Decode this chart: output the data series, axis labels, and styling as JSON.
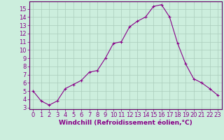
{
  "x": [
    0,
    1,
    2,
    3,
    4,
    5,
    6,
    7,
    8,
    9,
    10,
    11,
    12,
    13,
    14,
    15,
    16,
    17,
    18,
    19,
    20,
    21,
    22,
    23
  ],
  "y": [
    5.0,
    3.8,
    3.3,
    3.8,
    5.3,
    5.8,
    6.3,
    7.3,
    7.5,
    9.0,
    10.8,
    11.0,
    12.8,
    13.5,
    14.0,
    15.3,
    15.5,
    14.0,
    10.8,
    8.3,
    6.5,
    6.0,
    5.3,
    4.5
  ],
  "line_color": "#880088",
  "marker": "+",
  "marker_size": 3,
  "bg_color": "#cceedd",
  "grid_color": "#aaccbb",
  "xlabel": "Windchill (Refroidissement éolien,°C)",
  "ylabel_ticks": [
    3,
    4,
    5,
    6,
    7,
    8,
    9,
    10,
    11,
    12,
    13,
    14,
    15
  ],
  "xtick_labels": [
    "0",
    "1",
    "2",
    "3",
    "4",
    "5",
    "6",
    "7",
    "8",
    "9",
    "10",
    "11",
    "12",
    "13",
    "14",
    "15",
    "16",
    "17",
    "18",
    "19",
    "20",
    "21",
    "22",
    "23"
  ],
  "ylim": [
    2.8,
    15.9
  ],
  "xlim": [
    -0.5,
    23.5
  ],
  "axes_color": "#660066",
  "tick_color": "#880088",
  "label_fontsize": 6.5,
  "tick_fontsize": 6.0
}
